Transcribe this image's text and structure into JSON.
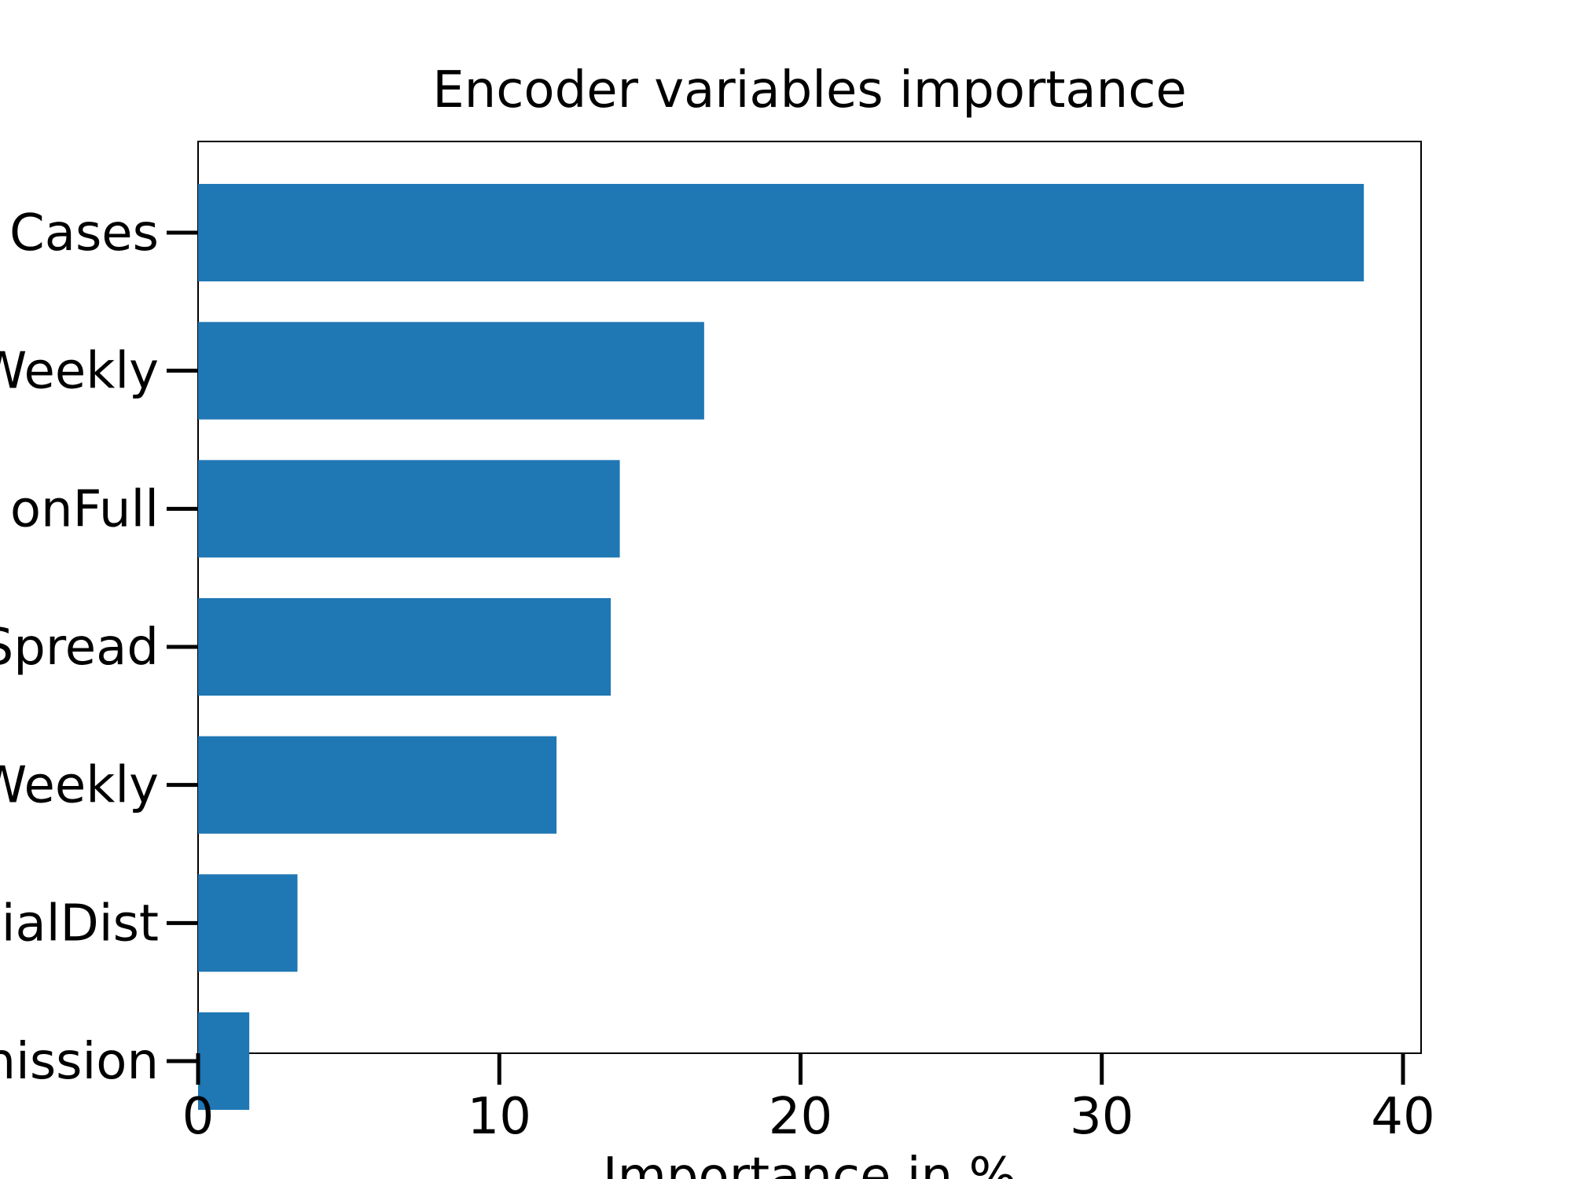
{
  "chart_data": {
    "type": "bar",
    "orientation": "horizontal",
    "title": "Encoder variables importance",
    "xlabel": "Importance in %",
    "ylabel": "",
    "categories": [
      "Cases",
      "Weekly",
      "onFull",
      "Spread",
      "Weekly",
      "ialDist",
      "nission"
    ],
    "values": [
      38.7,
      16.8,
      14.0,
      13.7,
      11.9,
      3.3,
      1.7
    ],
    "xlim": [
      0,
      40.6
    ],
    "xticks": [
      0,
      10,
      20,
      30,
      40
    ],
    "xtick_labels": [
      "0",
      "10",
      "20",
      "30",
      "40"
    ],
    "bar_color": "#1f77b4",
    "grid": false,
    "legend": "none"
  }
}
